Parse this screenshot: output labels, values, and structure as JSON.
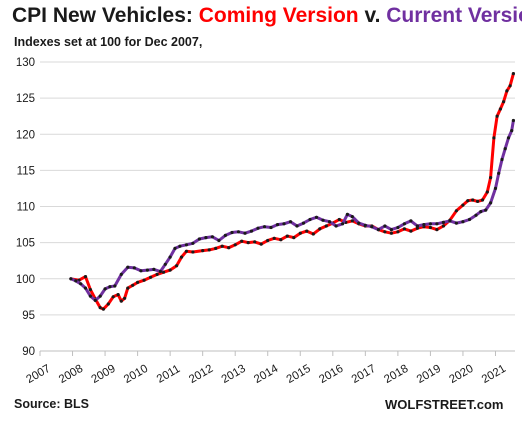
{
  "title": {
    "part1": "CPI New Vehicles: ",
    "part2": "Coming Version",
    "part3": " v. ",
    "part4": "Current Version"
  },
  "subtitle": "Indexes set at 100 for Dec 2007,",
  "source": "Source: BLS",
  "brand": "WOLFSTREET.com",
  "colors": {
    "coming": "#ff0000",
    "current": "#7030a0",
    "markers": "#1a1a1a",
    "grid": "#d9d9d9"
  },
  "chart_data": {
    "type": "line",
    "title": "CPI New Vehicles: Coming Version v. Current Version",
    "subtitle": "Indexes set at 100 for Dec 2007,",
    "xlabel": "",
    "ylabel": "",
    "ylim": [
      90,
      130
    ],
    "xlim": [
      2007,
      2021
    ],
    "y_ticks": [
      90,
      95,
      100,
      105,
      110,
      115,
      120,
      125,
      130
    ],
    "x_ticks": [
      "2007",
      "2008",
      "2009",
      "2010",
      "2011",
      "2012",
      "2013",
      "2014",
      "2015",
      "2016",
      "2017",
      "2018",
      "2019",
      "2020",
      "2021"
    ],
    "grid": "horizontal",
    "series": [
      {
        "name": "Coming Version",
        "color": "#ff0000",
        "points": [
          [
            2007.95,
            100.0
          ],
          [
            2008.2,
            99.8
          ],
          [
            2008.4,
            100.3
          ],
          [
            2008.55,
            98.5
          ],
          [
            2008.7,
            97.2
          ],
          [
            2008.85,
            96.0
          ],
          [
            2008.95,
            95.8
          ],
          [
            2009.1,
            96.5
          ],
          [
            2009.25,
            97.5
          ],
          [
            2009.4,
            97.8
          ],
          [
            2009.5,
            96.9
          ],
          [
            2009.6,
            97.3
          ],
          [
            2009.7,
            98.7
          ],
          [
            2009.85,
            99.1
          ],
          [
            2010.0,
            99.5
          ],
          [
            2010.2,
            99.8
          ],
          [
            2010.4,
            100.2
          ],
          [
            2010.6,
            100.6
          ],
          [
            2010.8,
            100.9
          ],
          [
            2011.0,
            101.2
          ],
          [
            2011.2,
            101.8
          ],
          [
            2011.35,
            103.0
          ],
          [
            2011.5,
            103.8
          ],
          [
            2011.7,
            103.7
          ],
          [
            2012.0,
            103.9
          ],
          [
            2012.2,
            104.0
          ],
          [
            2012.4,
            104.2
          ],
          [
            2012.6,
            104.5
          ],
          [
            2012.8,
            104.3
          ],
          [
            2013.0,
            104.7
          ],
          [
            2013.2,
            105.2
          ],
          [
            2013.4,
            105.0
          ],
          [
            2013.6,
            105.1
          ],
          [
            2013.8,
            104.8
          ],
          [
            2014.0,
            105.3
          ],
          [
            2014.2,
            105.6
          ],
          [
            2014.4,
            105.4
          ],
          [
            2014.6,
            105.9
          ],
          [
            2014.8,
            105.7
          ],
          [
            2015.0,
            106.3
          ],
          [
            2015.2,
            106.6
          ],
          [
            2015.4,
            106.2
          ],
          [
            2015.6,
            106.9
          ],
          [
            2015.8,
            107.3
          ],
          [
            2016.0,
            107.7
          ],
          [
            2016.2,
            108.2
          ],
          [
            2016.4,
            107.8
          ],
          [
            2016.6,
            108.0
          ],
          [
            2016.8,
            107.6
          ],
          [
            2017.0,
            107.3
          ],
          [
            2017.2,
            107.3
          ],
          [
            2017.4,
            106.8
          ],
          [
            2017.6,
            106.5
          ],
          [
            2017.8,
            106.3
          ],
          [
            2018.0,
            106.5
          ],
          [
            2018.2,
            106.9
          ],
          [
            2018.4,
            106.6
          ],
          [
            2018.6,
            107.0
          ],
          [
            2018.8,
            107.2
          ],
          [
            2019.0,
            107.1
          ],
          [
            2019.2,
            106.8
          ],
          [
            2019.4,
            107.3
          ],
          [
            2019.6,
            108.1
          ],
          [
            2019.8,
            109.4
          ],
          [
            2020.0,
            110.2
          ],
          [
            2020.15,
            110.8
          ],
          [
            2020.3,
            110.9
          ],
          [
            2020.45,
            110.7
          ],
          [
            2020.6,
            110.9
          ],
          [
            2020.75,
            112.0
          ],
          [
            2020.85,
            114.0
          ],
          [
            2020.95,
            119.5
          ],
          [
            2021.05,
            122.5
          ],
          [
            2021.15,
            123.5
          ],
          [
            2021.25,
            124.5
          ],
          [
            2021.35,
            126.0
          ],
          [
            2021.45,
            126.7
          ],
          [
            2021.55,
            128.4
          ]
        ]
      },
      {
        "name": "Current Version",
        "color": "#7030a0",
        "points": [
          [
            2007.95,
            100.0
          ],
          [
            2008.1,
            99.7
          ],
          [
            2008.25,
            99.3
          ],
          [
            2008.4,
            98.7
          ],
          [
            2008.55,
            97.6
          ],
          [
            2008.7,
            97.0
          ],
          [
            2008.85,
            97.6
          ],
          [
            2009.0,
            98.6
          ],
          [
            2009.15,
            98.9
          ],
          [
            2009.3,
            99.0
          ],
          [
            2009.5,
            100.6
          ],
          [
            2009.7,
            101.6
          ],
          [
            2009.9,
            101.5
          ],
          [
            2010.1,
            101.1
          ],
          [
            2010.3,
            101.2
          ],
          [
            2010.5,
            101.3
          ],
          [
            2010.7,
            101.0
          ],
          [
            2010.85,
            102.0
          ],
          [
            2011.0,
            103.0
          ],
          [
            2011.15,
            104.2
          ],
          [
            2011.3,
            104.5
          ],
          [
            2011.5,
            104.7
          ],
          [
            2011.7,
            104.9
          ],
          [
            2011.9,
            105.5
          ],
          [
            2012.1,
            105.7
          ],
          [
            2012.3,
            105.8
          ],
          [
            2012.5,
            105.3
          ],
          [
            2012.7,
            106.0
          ],
          [
            2012.9,
            106.4
          ],
          [
            2013.1,
            106.5
          ],
          [
            2013.3,
            106.3
          ],
          [
            2013.5,
            106.6
          ],
          [
            2013.7,
            107.0
          ],
          [
            2013.9,
            107.2
          ],
          [
            2014.1,
            107.1
          ],
          [
            2014.3,
            107.5
          ],
          [
            2014.5,
            107.6
          ],
          [
            2014.7,
            107.9
          ],
          [
            2014.9,
            107.3
          ],
          [
            2015.1,
            107.7
          ],
          [
            2015.3,
            108.2
          ],
          [
            2015.5,
            108.5
          ],
          [
            2015.7,
            108.1
          ],
          [
            2015.9,
            107.9
          ],
          [
            2016.1,
            107.3
          ],
          [
            2016.3,
            107.6
          ],
          [
            2016.45,
            108.9
          ],
          [
            2016.6,
            108.6
          ],
          [
            2016.8,
            107.7
          ],
          [
            2017.0,
            107.4
          ],
          [
            2017.2,
            107.2
          ],
          [
            2017.4,
            106.8
          ],
          [
            2017.6,
            107.3
          ],
          [
            2017.8,
            106.8
          ],
          [
            2018.0,
            107.1
          ],
          [
            2018.2,
            107.6
          ],
          [
            2018.4,
            108.0
          ],
          [
            2018.6,
            107.3
          ],
          [
            2018.8,
            107.5
          ],
          [
            2019.0,
            107.6
          ],
          [
            2019.2,
            107.6
          ],
          [
            2019.4,
            107.8
          ],
          [
            2019.6,
            108.0
          ],
          [
            2019.8,
            107.7
          ],
          [
            2020.0,
            107.9
          ],
          [
            2020.2,
            108.2
          ],
          [
            2020.4,
            108.8
          ],
          [
            2020.55,
            109.3
          ],
          [
            2020.7,
            109.5
          ],
          [
            2020.85,
            110.5
          ],
          [
            2021.0,
            112.5
          ],
          [
            2021.1,
            114.6
          ],
          [
            2021.2,
            116.5
          ],
          [
            2021.3,
            118.0
          ],
          [
            2021.4,
            119.5
          ],
          [
            2021.5,
            120.5
          ],
          [
            2021.55,
            121.9
          ]
        ]
      }
    ]
  }
}
